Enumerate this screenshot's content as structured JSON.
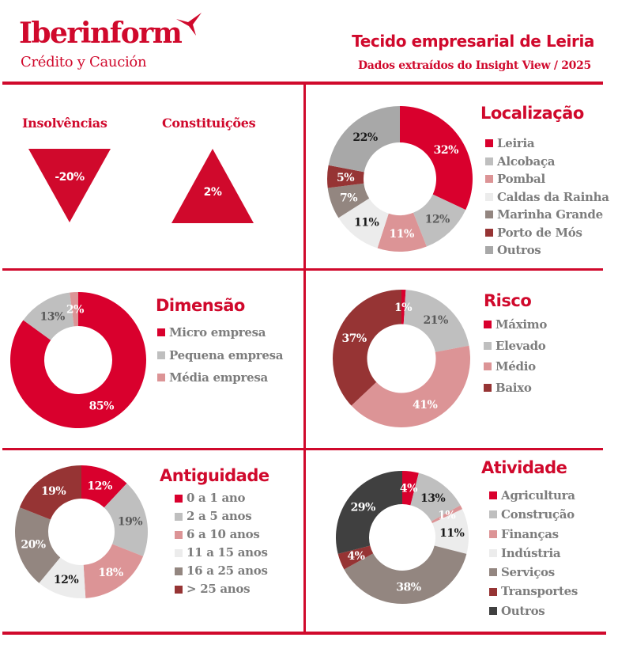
{
  "header": {
    "brand_name": "Iberinform",
    "brand_sub": "Crédito y Caución",
    "title": "Tecido empresarial de Leiria",
    "subtitle": "Dados extraídos do Insight View / 2025"
  },
  "colors": {
    "accent": "#d0092c",
    "legend_text": "#7d7d7d"
  },
  "kpis": [
    {
      "label": "Insolvências",
      "value": "-20%",
      "direction": "down",
      "icon": "triangle-down-icon"
    },
    {
      "label": "Constituições",
      "value": "2%",
      "direction": "up",
      "icon": "triangle-up-icon"
    }
  ],
  "chart_data": [
    {
      "type": "pie",
      "variant": "donut",
      "title": "Localização",
      "categories": [
        "Leiria",
        "Alcobaça",
        "Pombal",
        "Caldas da Rainha",
        "Marinha Grande",
        "Porto de Mós",
        "Outros"
      ],
      "values": [
        32,
        12,
        11,
        11,
        7,
        5,
        22
      ],
      "labels": [
        "32%",
        "12%",
        "11%",
        "11%",
        "7%",
        "5%",
        "22%"
      ],
      "colors": [
        "#d9002d",
        "#bfbfbf",
        "#dc9496",
        "#ececec",
        "#938680",
        "#963434",
        "#a8a8a8"
      ],
      "label_colors": [
        "#ffffff",
        "#5a5a5a",
        "#ffffff",
        "#1a1a1a",
        "#ffffff",
        "#ffffff",
        "#1a1a1a"
      ],
      "legend": "right"
    },
    {
      "type": "pie",
      "variant": "donut",
      "title": "Dimensão",
      "categories": [
        "Micro empresa",
        "Pequena empresa",
        "Média empresa"
      ],
      "values": [
        85,
        13,
        2
      ],
      "labels": [
        "85%",
        "13%",
        "2%"
      ],
      "colors": [
        "#d9002d",
        "#bfbfbf",
        "#dc9496"
      ],
      "label_colors": [
        "#ffffff",
        "#5a5a5a",
        "#ffffff"
      ],
      "legend": "right"
    },
    {
      "type": "pie",
      "variant": "donut",
      "title": "Risco",
      "categories": [
        "Máximo",
        "Elevado",
        "Médio",
        "Baixo"
      ],
      "values": [
        1,
        21,
        41,
        37
      ],
      "labels": [
        "1%",
        "21%",
        "41%",
        "37%"
      ],
      "colors": [
        "#d9002d",
        "#bfbfbf",
        "#dc9496",
        "#963434"
      ],
      "label_colors": [
        "#ffffff",
        "#5a5a5a",
        "#ffffff",
        "#ffffff"
      ],
      "legend": "right"
    },
    {
      "type": "pie",
      "variant": "donut",
      "title": "Antiguidade",
      "categories": [
        "0 a 1 ano",
        "2 a 5 anos",
        "6 a 10 anos",
        "11 a 15 anos",
        "16 a 25 anos",
        "> 25 anos"
      ],
      "values": [
        12,
        19,
        18,
        12,
        20,
        19
      ],
      "labels": [
        "12%",
        "19%",
        "18%",
        "12%",
        "20%",
        "19%"
      ],
      "colors": [
        "#d9002d",
        "#bfbfbf",
        "#dc9496",
        "#ececec",
        "#938680",
        "#963434"
      ],
      "label_colors": [
        "#ffffff",
        "#5a5a5a",
        "#ffffff",
        "#1a1a1a",
        "#ffffff",
        "#ffffff"
      ],
      "legend": "right"
    },
    {
      "type": "pie",
      "variant": "donut",
      "title": "Atividade",
      "categories": [
        "Agricultura",
        "Construção",
        "Finanças",
        "Indústria",
        "Serviços",
        "Transportes",
        "Outros"
      ],
      "values": [
        4,
        13,
        1,
        11,
        38,
        4,
        29
      ],
      "labels": [
        "4%",
        "13%",
        "1%",
        "11%",
        "38%",
        "4%",
        "29%"
      ],
      "colors": [
        "#d9002d",
        "#bfbfbf",
        "#dc9496",
        "#ececec",
        "#938680",
        "#963434",
        "#404040"
      ],
      "label_colors": [
        "#ffffff",
        "#1a1a1a",
        "#ffffff",
        "#1a1a1a",
        "#ffffff",
        "#ffffff",
        "#ffffff"
      ],
      "legend": "right"
    }
  ]
}
